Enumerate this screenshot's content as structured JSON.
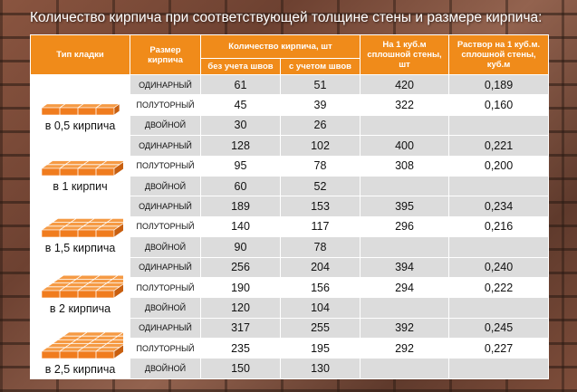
{
  "title": "Количество кирпича при соответствующей толщине стены и размере кирпича:",
  "headers": {
    "type": "Тип кладки",
    "size": "Размер кирпича",
    "count": "Количество кирпича, шт",
    "without": "без учета швов",
    "with": "с учетом швов",
    "per_m3": "На 1 куб.м сплошной стены, шт",
    "mortar": "Раствор на 1 куб.м. сплошной стены, куб.м"
  },
  "groups": [
    {
      "type": "в 0,5 кирпича",
      "icon": "brick-wall-half-icon",
      "rows": [
        {
          "size": "ОДИНАРНЫЙ",
          "without": "61",
          "with": "51",
          "per_m3": "420",
          "mortar": "0,189"
        },
        {
          "size": "ПОЛУТОРНЫЙ",
          "without": "45",
          "with": "39",
          "per_m3": "322",
          "mortar": "0,160"
        },
        {
          "size": "ДВОЙНОЙ",
          "without": "30",
          "with": "26",
          "per_m3": "",
          "mortar": ""
        }
      ]
    },
    {
      "type": "в 1 кирпич",
      "icon": "brick-wall-one-icon",
      "rows": [
        {
          "size": "ОДИНАРНЫЙ",
          "without": "128",
          "with": "102",
          "per_m3": "400",
          "mortar": "0,221"
        },
        {
          "size": "ПОЛУТОРНЫЙ",
          "without": "95",
          "with": "78",
          "per_m3": "308",
          "mortar": "0,200"
        },
        {
          "size": "ДВОЙНОЙ",
          "without": "60",
          "with": "52",
          "per_m3": "",
          "mortar": ""
        }
      ]
    },
    {
      "type": "в 1,5 кирпича",
      "icon": "brick-wall-one-half-icon",
      "rows": [
        {
          "size": "ОДИНАРНЫЙ",
          "without": "189",
          "with": "153",
          "per_m3": "395",
          "mortar": "0,234"
        },
        {
          "size": "ПОЛУТОРНЫЙ",
          "without": "140",
          "with": "117",
          "per_m3": "296",
          "mortar": "0,216"
        },
        {
          "size": "ДВОЙНОЙ",
          "without": "90",
          "with": "78",
          "per_m3": "",
          "mortar": ""
        }
      ]
    },
    {
      "type": "в 2 кирпича",
      "icon": "brick-wall-two-icon",
      "rows": [
        {
          "size": "ОДИНАРНЫЙ",
          "without": "256",
          "with": "204",
          "per_m3": "394",
          "mortar": "0,240"
        },
        {
          "size": "ПОЛУТОРНЫЙ",
          "without": "190",
          "with": "156",
          "per_m3": "294",
          "mortar": "0,222"
        },
        {
          "size": "ДВОЙНОЙ",
          "without": "120",
          "with": "104",
          "per_m3": "",
          "mortar": ""
        }
      ]
    },
    {
      "type": "в 2,5 кирпича",
      "icon": "brick-wall-two-half-icon",
      "rows": [
        {
          "size": "ОДИНАРНЫЙ",
          "without": "317",
          "with": "255",
          "per_m3": "392",
          "mortar": "0,245"
        },
        {
          "size": "ПОЛУТОРНЫЙ",
          "without": "235",
          "with": "195",
          "per_m3": "292",
          "mortar": "0,227"
        },
        {
          "size": "ДВОЙНОЙ",
          "without": "150",
          "with": "130",
          "per_m3": "",
          "mortar": ""
        }
      ]
    }
  ],
  "colors": {
    "header": "#f08b1a",
    "brick": "#f07c1e",
    "alt_row": "#dcdcdc"
  }
}
